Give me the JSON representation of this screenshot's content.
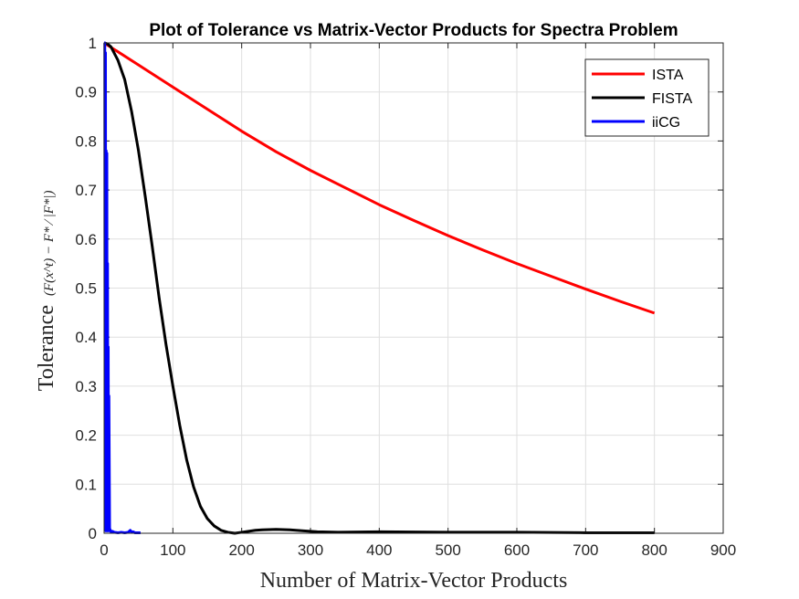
{
  "chart_data": {
    "type": "line",
    "title": "Plot of Tolerance vs Matrix-Vector Products for Spectra Problem",
    "xlabel": "Number of Matrix-Vector Products",
    "ylabel": "Tolerance",
    "ylabel_formula": "(F(x^t) − F* ⁄ |F*|)",
    "xlim": [
      0,
      900
    ],
    "ylim": [
      0,
      1
    ],
    "xticks": [
      "0",
      "100",
      "200",
      "300",
      "400",
      "500",
      "600",
      "700",
      "800",
      "900"
    ],
    "yticks": [
      "0",
      "0.1",
      "0.2",
      "0.3",
      "0.4",
      "0.5",
      "0.6",
      "0.7",
      "0.8",
      "0.9",
      "1"
    ],
    "grid": true,
    "legend_position": "top-right",
    "series": [
      {
        "name": "ISTA",
        "color": "#ff0000",
        "x": [
          0,
          50,
          100,
          150,
          200,
          250,
          300,
          350,
          400,
          450,
          500,
          550,
          600,
          650,
          700,
          750,
          800
        ],
        "y": [
          1.0,
          0.955,
          0.91,
          0.865,
          0.82,
          0.778,
          0.74,
          0.705,
          0.67,
          0.638,
          0.607,
          0.578,
          0.55,
          0.524,
          0.498,
          0.473,
          0.449
        ]
      },
      {
        "name": "FISTA",
        "color": "#000000",
        "x": [
          0,
          5,
          10,
          20,
          30,
          40,
          50,
          60,
          70,
          80,
          90,
          100,
          110,
          120,
          130,
          140,
          150,
          160,
          170,
          180,
          190,
          200,
          210,
          220,
          230,
          250,
          270,
          290,
          310,
          340,
          400,
          500,
          600,
          700,
          800
        ],
        "y": [
          1.0,
          0.998,
          0.992,
          0.965,
          0.925,
          0.86,
          0.78,
          0.685,
          0.585,
          0.48,
          0.385,
          0.3,
          0.22,
          0.15,
          0.095,
          0.055,
          0.03,
          0.015,
          0.006,
          0.002,
          0.0,
          0.002,
          0.004,
          0.006,
          0.007,
          0.008,
          0.007,
          0.005,
          0.003,
          0.002,
          0.003,
          0.002,
          0.002,
          0.001,
          0.001
        ]
      },
      {
        "name": "iiCG",
        "color": "#0000ff",
        "x": [
          0,
          1,
          1.5,
          2,
          2.5,
          3,
          3.5,
          4,
          4.5,
          5,
          5.5,
          6,
          6.5,
          7,
          8,
          10,
          12,
          15,
          20,
          25,
          30,
          35,
          38,
          40,
          42,
          45,
          50,
          53
        ],
        "y": [
          1.0,
          1.0,
          0.01,
          0.98,
          0.005,
          0.78,
          0.01,
          0.775,
          0.005,
          0.55,
          0.01,
          0.38,
          0.005,
          0.28,
          0.01,
          0.003,
          0.004,
          0.002,
          0.001,
          0.002,
          0.001,
          0.002,
          0.006,
          0.002,
          0.003,
          0.001,
          0.001,
          0.001
        ]
      }
    ]
  }
}
